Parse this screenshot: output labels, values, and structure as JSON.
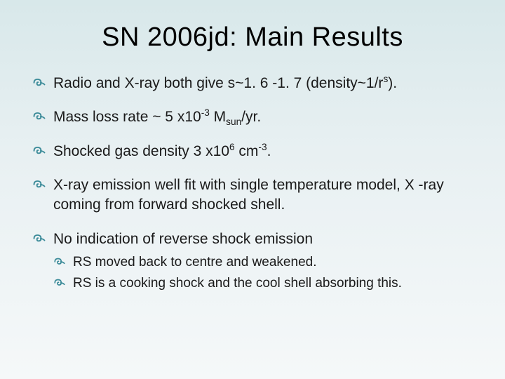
{
  "title": "SN 2006jd: Main Results",
  "bullet_color": "#3a8a98",
  "text_color": "#1a1a1a",
  "background_gradient": [
    "#d8e8ea",
    "#e8f0f2",
    "#f5f8f9"
  ],
  "title_fontsize": 38,
  "bullet_fontsize": 21,
  "sub_bullet_fontsize": 19,
  "bullets": [
    {
      "html": "Radio and X-ray both give s~1. 6 -1. 7 (density~1/r<sup>s</sup>).",
      "subs": []
    },
    {
      "html": "Mass loss rate ~ 5 x10<sup>-3</sup> M<sub>sun</sub>/yr.",
      "subs": []
    },
    {
      "html": "Shocked gas density 3 x10<sup>6</sup> cm<sup>-3</sup>.",
      "subs": []
    },
    {
      "html": "X-ray emission well fit with single temperature model, X -ray coming from forward shocked shell.",
      "subs": []
    },
    {
      "html": "No indication of reverse shock emission",
      "subs": [
        {
          "html": "RS moved back to centre and weakened."
        },
        {
          "html": "RS is a cooking shock and the cool shell absorbing this."
        }
      ]
    }
  ]
}
